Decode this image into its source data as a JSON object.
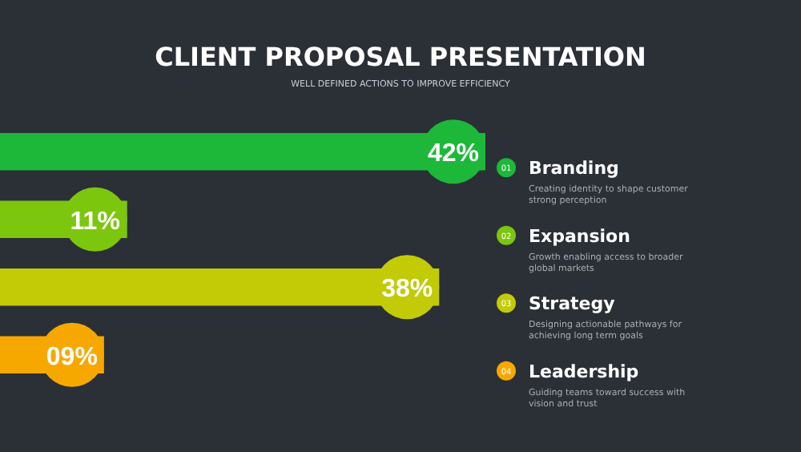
{
  "chart_data": {
    "type": "bar",
    "orientation": "horizontal",
    "title": "CLIENT PROPOSAL PRESENTATION",
    "subtitle": "WELL DEFINED ACTIONS TO IMPROVE EFFICIENCY",
    "categories": [
      "Branding",
      "Expansion",
      "Strategy",
      "Leadership"
    ],
    "values": [
      42,
      11,
      38,
      9
    ],
    "colors": [
      "#1db83a",
      "#7cc60e",
      "#c2cb06",
      "#f7a800"
    ],
    "value_labels": [
      "42%",
      "11%",
      "38%",
      "09%"
    ],
    "annotations": [
      "01",
      "Creating identity to shape customer strong perception",
      "02",
      "Growth enabling access to broader global markets",
      "03",
      "Designing actionable pathways for achieving long term goals",
      "04",
      "Guiding teams toward success with vision and trust"
    ]
  }
}
